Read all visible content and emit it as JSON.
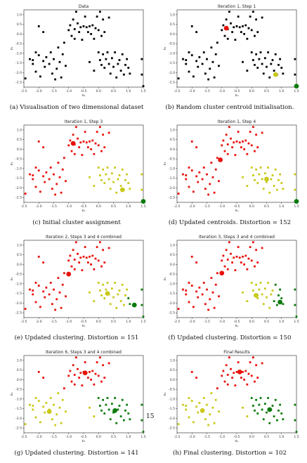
{
  "page_number": "15",
  "colors": {
    "black": "#000000",
    "red": "#e8120c",
    "yellow": "#c9c91a",
    "green": "#0b7a0b"
  },
  "base_points": [
    [
      -2.2,
      -1.35
    ],
    [
      -2.2,
      -1.55
    ],
    [
      -2.1,
      -1.95
    ],
    [
      -2.0,
      -1.1
    ],
    [
      -1.95,
      -2.2
    ],
    [
      -1.85,
      -1.4
    ],
    [
      -1.8,
      -1.7
    ],
    [
      -1.75,
      -1.2
    ],
    [
      -1.65,
      -1.55
    ],
    [
      -1.6,
      -0.95
    ],
    [
      -1.55,
      -2.05
    ],
    [
      -1.5,
      -1.3
    ],
    [
      -1.45,
      -2.35
    ],
    [
      -1.4,
      -1.8
    ],
    [
      -1.35,
      -0.7
    ],
    [
      -1.3,
      -1.45
    ],
    [
      -1.25,
      -2.25
    ],
    [
      -1.2,
      -1.05
    ],
    [
      -1.15,
      -0.45
    ],
    [
      -1.1,
      -1.65
    ],
    [
      -2.45,
      -2.3
    ],
    [
      -2.3,
      -1.3
    ],
    [
      -1.0,
      0.2
    ],
    [
      -0.95,
      0.45
    ],
    [
      -0.9,
      -0.1
    ],
    [
      -0.85,
      0.75
    ],
    [
      -0.8,
      0.25
    ],
    [
      -0.75,
      1.15
    ],
    [
      -0.7,
      0.55
    ],
    [
      -0.65,
      0.1
    ],
    [
      -0.6,
      0.35
    ],
    [
      -0.55,
      -0.3
    ],
    [
      -0.5,
      0.4
    ],
    [
      -0.45,
      0.9
    ],
    [
      -0.4,
      0.35
    ],
    [
      -0.35,
      0.1
    ],
    [
      -0.3,
      0.4
    ],
    [
      -0.25,
      0.0
    ],
    [
      -0.2,
      0.45
    ],
    [
      -0.15,
      -0.25
    ],
    [
      -0.1,
      0.3
    ],
    [
      -0.05,
      0.9
    ],
    [
      0.0,
      0.2
    ],
    [
      0.05,
      1.15
    ],
    [
      0.1,
      -0.1
    ],
    [
      0.15,
      0.75
    ],
    [
      0.2,
      0.1
    ],
    [
      -0.8,
      -0.25
    ],
    [
      -2.0,
      0.4
    ],
    [
      -1.85,
      0.1
    ],
    [
      -2.1,
      -0.95
    ],
    [
      0.35,
      0.85
    ],
    [
      0.0,
      -0.95
    ],
    [
      0.05,
      -1.35
    ],
    [
      0.1,
      -1.6
    ],
    [
      0.15,
      -1.05
    ],
    [
      0.2,
      -1.75
    ],
    [
      0.25,
      -1.3
    ],
    [
      0.3,
      -0.95
    ],
    [
      0.35,
      -1.55
    ],
    [
      0.4,
      -2.05
    ],
    [
      0.45,
      -1.25
    ],
    [
      0.5,
      -1.7
    ],
    [
      0.55,
      -0.95
    ],
    [
      0.6,
      -2.25
    ],
    [
      0.65,
      -1.55
    ],
    [
      0.7,
      -1.35
    ],
    [
      0.75,
      -1.9
    ],
    [
      0.8,
      -1.05
    ],
    [
      0.85,
      -2.1
    ],
    [
      0.9,
      -1.6
    ],
    [
      0.95,
      -1.3
    ],
    [
      1.0,
      -1.75
    ],
    [
      1.05,
      -2.05
    ],
    [
      -0.3,
      -1.45
    ],
    [
      -0.15,
      -1.9
    ],
    [
      1.45,
      -1.3
    ],
    [
      1.45,
      -2.1
    ],
    [
      1.5,
      -2.7
    ]
  ],
  "panels": [
    {
      "title": "Data",
      "caption": "(a) Visualisation of two dimensional dataset",
      "xlabel": "x₁",
      "ylabel": "x₂",
      "labels": "all_black",
      "centroids": []
    },
    {
      "title": "Iteration 1, Step 1",
      "caption": "(b) Random cluster centroid initialisation.",
      "xlabel": "x₁",
      "ylabel": "x₂",
      "labels": "all_black",
      "centroids": [
        {
          "x": -0.85,
          "y": 0.3,
          "color": "red"
        },
        {
          "x": 0.8,
          "y": -2.1,
          "color": "yellow"
        },
        {
          "x": 1.5,
          "y": -2.7,
          "color": "green"
        }
      ]
    },
    {
      "title": "Iteration 1, Step 3",
      "caption": "(c) Initial cluster assignment",
      "xlabel": "x₁",
      "ylabel": "x₂",
      "labels": "init",
      "centroids": [
        {
          "x": -0.85,
          "y": 0.3,
          "color": "red"
        },
        {
          "x": 0.8,
          "y": -2.1,
          "color": "yellow"
        },
        {
          "x": 1.5,
          "y": -2.7,
          "color": "green"
        }
      ]
    },
    {
      "title": "Iteration 1, Step 4",
      "caption": "(d) Updated centroids. Distortion = 152",
      "xlabel": "x₁",
      "ylabel": "x₂",
      "labels": "init",
      "centroids": [
        {
          "x": -1.05,
          "y": -0.55,
          "color": "red"
        },
        {
          "x": 0.5,
          "y": -1.55,
          "color": "yellow"
        },
        {
          "x": 1.5,
          "y": -2.7,
          "color": "green"
        }
      ]
    },
    {
      "title": "Iteration 2, Steps 3 and 4 combined",
      "caption": "(e) Updated clustering. Distortion = 151",
      "xlabel": "x₁",
      "ylabel": "x₂",
      "labels": "iter2",
      "centroids": [
        {
          "x": -1.0,
          "y": -0.5,
          "color": "red"
        },
        {
          "x": 0.3,
          "y": -1.5,
          "color": "yellow"
        },
        {
          "x": 1.2,
          "y": -2.1,
          "color": "green"
        }
      ]
    },
    {
      "title": "Iteration 3, Steps 3 and 4 combined",
      "caption": "(f) Updated clustering. Distortion = 150",
      "xlabel": "x₁",
      "ylabel": "x₂",
      "labels": "iter3",
      "centroids": [
        {
          "x": -1.0,
          "y": -0.45,
          "color": "red"
        },
        {
          "x": 0.15,
          "y": -1.6,
          "color": "yellow"
        },
        {
          "x": 0.95,
          "y": -1.95,
          "color": "green"
        }
      ]
    },
    {
      "title": "Iteration 6, Steps 3 and 4 combined",
      "caption": "(g) Updated clustering. Distortion = 141",
      "xlabel": "x₁",
      "ylabel": "x₂",
      "labels": "iter6",
      "centroids": [
        {
          "x": -0.45,
          "y": 0.35,
          "color": "red"
        },
        {
          "x": -1.65,
          "y": -1.65,
          "color": "yellow"
        },
        {
          "x": 0.55,
          "y": -1.6,
          "color": "green"
        }
      ]
    },
    {
      "title": "Final Results",
      "caption": "(h) Final clustering. Distortion = 102",
      "xlabel": "x₁",
      "ylabel": "x₂",
      "labels": "iter6",
      "centroids": [
        {
          "x": -0.4,
          "y": 0.4,
          "color": "red"
        },
        {
          "x": -1.65,
          "y": -1.6,
          "color": "yellow"
        },
        {
          "x": 0.6,
          "y": -1.55,
          "color": "green"
        }
      ]
    }
  ],
  "axes": {
    "xlim": [
      -2.5,
      1.5
    ],
    "ylim": [
      -2.75,
      1.25
    ],
    "xticks": [
      "-2.5",
      "-2.0",
      "-1.5",
      "-1.0",
      "-0.5",
      "0.0",
      "0.5",
      "1.0",
      "1.5"
    ],
    "yticks": [
      "1.0",
      "0.5",
      "0.0",
      "-0.5",
      "-1.0",
      "-1.5",
      "-2.0",
      "-2.5"
    ]
  },
  "chart_data": [
    {
      "type": "scatter",
      "title": "Data",
      "xlabel": "x₁",
      "ylabel": "x₂",
      "xlim": [
        -2.5,
        1.5
      ],
      "ylim": [
        -2.75,
        1.25
      ]
    },
    {
      "type": "scatter",
      "title": "Iteration 1, Step 1",
      "xlabel": "x₁",
      "ylabel": "x₂",
      "xlim": [
        -2.5,
        1.5
      ],
      "ylim": [
        -2.75,
        1.25
      ]
    },
    {
      "type": "scatter",
      "title": "Iteration 1, Step 3",
      "xlabel": "x₁",
      "ylabel": "x₂",
      "xlim": [
        -2.5,
        1.5
      ],
      "ylim": [
        -2.75,
        1.25
      ]
    },
    {
      "type": "scatter",
      "title": "Iteration 1, Step 4",
      "xlabel": "x₁",
      "ylabel": "x₂",
      "xlim": [
        -2.5,
        1.5
      ],
      "ylim": [
        -2.75,
        1.25
      ]
    },
    {
      "type": "scatter",
      "title": "Iteration 2, Steps 3 and 4 combined",
      "xlabel": "x₁",
      "ylabel": "x₂",
      "xlim": [
        -2.5,
        1.5
      ],
      "ylim": [
        -2.75,
        1.25
      ]
    },
    {
      "type": "scatter",
      "title": "Iteration 3, Steps 3 and 4 combined",
      "xlabel": "x₁",
      "ylabel": "x₂",
      "xlim": [
        -2.5,
        1.5
      ],
      "ylim": [
        -2.75,
        1.25
      ]
    },
    {
      "type": "scatter",
      "title": "Iteration 6, Steps 3 and 4 combined",
      "xlabel": "x₁",
      "ylabel": "x₂",
      "xlim": [
        -2.5,
        1.5
      ],
      "ylim": [
        -2.75,
        1.25
      ]
    },
    {
      "type": "scatter",
      "title": "Final Results",
      "xlabel": "x₁",
      "ylabel": "x₂",
      "xlim": [
        -2.5,
        1.5
      ],
      "ylim": [
        -2.75,
        1.25
      ]
    }
  ]
}
